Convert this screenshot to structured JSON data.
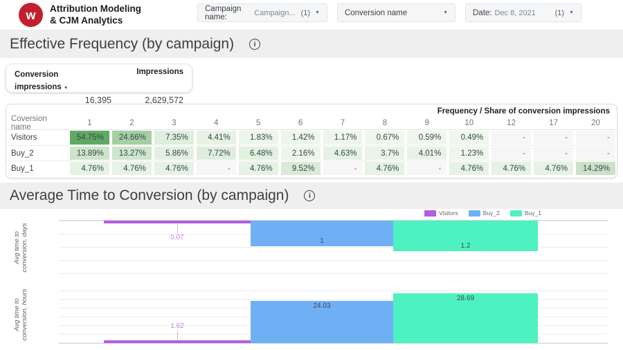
{
  "brand": {
    "line1": "Attribution Modeling",
    "line2": "& CJM Analytics",
    "logo_letter": "w",
    "logo_color": "#c2202f"
  },
  "filters": [
    {
      "label": "Campaign name:",
      "value": "Campaign...",
      "count": "(1)"
    },
    {
      "label": "Conversion name",
      "value": "",
      "count": ""
    },
    {
      "label": "Date:",
      "value": "Dec 8, 2021",
      "count": "(1)"
    }
  ],
  "sections": {
    "frequency_title": "Effective Frequency (by campaign)",
    "time_title": "Average Time to Conversion (by campaign)"
  },
  "scorecard": {
    "metric1_label": "Conversion impressions",
    "metric1_value": "16,395",
    "metric2_label": "Impressions",
    "metric2_value": "2,629,572"
  },
  "table": {
    "corner_header": "Frequency / Share of conversion impressions",
    "row_header": "Coversion name",
    "columns": [
      "1",
      "2",
      "3",
      "4",
      "5",
      "6",
      "7",
      "8",
      "9",
      "10",
      "12",
      "17",
      "20"
    ],
    "rows": [
      {
        "name": "Visitors",
        "cells": [
          {
            "v": "54.75%",
            "bg": "#60a963"
          },
          {
            "v": "24.66%",
            "bg": "#a5cea3"
          },
          {
            "v": "7.35%",
            "bg": "#dfeedd"
          },
          {
            "v": "4.41%",
            "bg": "#e7f2e4"
          },
          {
            "v": "1.83%",
            "bg": "#edf6ea"
          },
          {
            "v": "1.42%",
            "bg": "#eef6eb"
          },
          {
            "v": "1.17%",
            "bg": "#eef6ec"
          },
          {
            "v": "0.67%",
            "bg": "#f0f7ed"
          },
          {
            "v": "0.59%",
            "bg": "#f0f7ed"
          },
          {
            "v": "0.49%",
            "bg": "#f0f7ee"
          },
          {
            "v": "-",
            "bg": "#f6f6f6"
          },
          {
            "v": "-",
            "bg": "#f6f6f6"
          },
          {
            "v": "-",
            "bg": "#f6f6f6"
          }
        ]
      },
      {
        "name": "Buy_2",
        "cells": [
          {
            "v": "13.89%",
            "bg": "#cde4cb"
          },
          {
            "v": "13.27%",
            "bg": "#cfe5cd"
          },
          {
            "v": "5.86%",
            "bg": "#e3f0e0"
          },
          {
            "v": "7.72%",
            "bg": "#dfeedc"
          },
          {
            "v": "6.48%",
            "bg": "#e2f0df"
          },
          {
            "v": "2.16%",
            "bg": "#ecf5e9"
          },
          {
            "v": "4.63%",
            "bg": "#e6f2e3"
          },
          {
            "v": "3.7%",
            "bg": "#e9f3e6"
          },
          {
            "v": "4.01%",
            "bg": "#e8f3e5"
          },
          {
            "v": "1.23%",
            "bg": "#eef6eb"
          },
          {
            "v": "-",
            "bg": "#f6f6f6"
          },
          {
            "v": "-",
            "bg": "#f6f6f6"
          },
          {
            "v": "-",
            "bg": "#f6f6f6"
          }
        ]
      },
      {
        "name": "Buy_1",
        "cells": [
          {
            "v": "4.76%",
            "bg": "#e6f2e3"
          },
          {
            "v": "4.76%",
            "bg": "#e6f2e3"
          },
          {
            "v": "4.76%",
            "bg": "#e6f2e3"
          },
          {
            "v": "-",
            "bg": "#f6f6f6"
          },
          {
            "v": "4.76%",
            "bg": "#e6f2e3"
          },
          {
            "v": "9.52%",
            "bg": "#d9ebd6"
          },
          {
            "v": "-",
            "bg": "#f6f6f6"
          },
          {
            "v": "4.76%",
            "bg": "#e6f2e3"
          },
          {
            "v": "-",
            "bg": "#f6f6f6"
          },
          {
            "v": "4.76%",
            "bg": "#e6f2e3"
          },
          {
            "v": "4.76%",
            "bg": "#e6f2e3"
          },
          {
            "v": "4.76%",
            "bg": "#e6f2e3"
          },
          {
            "v": "14.29%",
            "bg": "#cbe2c8"
          }
        ]
      }
    ]
  },
  "legend": [
    {
      "name": "Visitors",
      "color": "#b55ce3"
    },
    {
      "name": "Buy_2",
      "color": "#6fb0f5"
    },
    {
      "name": "Buy_1",
      "color": "#4df2c0"
    }
  ],
  "chart_data": [
    {
      "type": "bar",
      "ylabel": "Avg time to conversion, days",
      "anchor": "top",
      "grid": true,
      "legend_position": "top-right",
      "ylim": [
        0,
        2.2
      ],
      "series": [
        {
          "name": "Visitors",
          "value": 0.07,
          "label": "0.07"
        },
        {
          "name": "Buy_2",
          "value": 1,
          "label": "1"
        },
        {
          "name": "Buy_1",
          "value": 1.2,
          "label": "1.2"
        }
      ]
    },
    {
      "type": "bar",
      "ylabel": "Avg time to conversion, hours",
      "anchor": "bottom",
      "grid": true,
      "legend_position": "top-right",
      "ylim": [
        0,
        34
      ],
      "series": [
        {
          "name": "Visitors",
          "value": 1.62,
          "label": "1.62"
        },
        {
          "name": "Buy_2",
          "value": 24.03,
          "label": "24.03"
        },
        {
          "name": "Buy_1",
          "value": 28.69,
          "label": "28.69"
        }
      ]
    }
  ]
}
